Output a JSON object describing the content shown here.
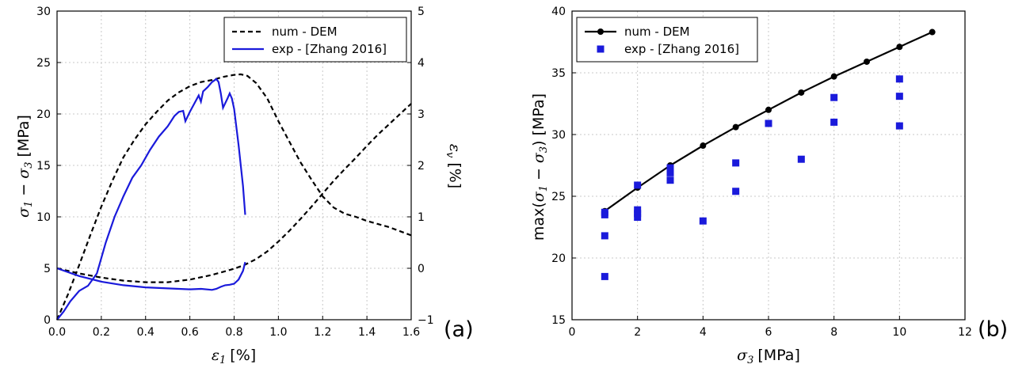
{
  "chart_data": [
    {
      "type": "line",
      "panel_label": "(a)",
      "xlabel_sym": "ε",
      "xlabel_sub": "1",
      "xlabel_unit": "[%]",
      "ylabel": "σ1 − σ3 [MPa]",
      "ylabel_sym1": "σ",
      "ylabel_sub1": "1",
      "ylabel_minus": "−",
      "ylabel_sym2": "σ",
      "ylabel_sub2": "3",
      "ylabel_unit": "[MPa]",
      "y2label_sym": "ε",
      "y2label_sub": "v",
      "y2label_unit": "[%]",
      "xlim": [
        0.0,
        1.6
      ],
      "ylim": [
        0,
        30
      ],
      "y2lim": [
        -1,
        5
      ],
      "xticks": [
        "0.0",
        "0.2",
        "0.4",
        "0.6",
        "0.8",
        "1.0",
        "1.2",
        "1.4",
        "1.6"
      ],
      "yticks": [
        "0",
        "5",
        "10",
        "15",
        "20",
        "25",
        "30"
      ],
      "y2ticks": [
        "−1",
        "0",
        "1",
        "2",
        "3",
        "4",
        "5"
      ],
      "grid": true,
      "legend_position": "top-right",
      "legend": [
        "num - DEM",
        "exp - [Zhang 2016]"
      ],
      "series": [
        {
          "name": "num - DEM",
          "axis": "left",
          "style": "dashed",
          "color": "#000000",
          "x": [
            0,
            0.05,
            0.1,
            0.15,
            0.2,
            0.25,
            0.3,
            0.35,
            0.4,
            0.45,
            0.5,
            0.55,
            0.6,
            0.65,
            0.7,
            0.75,
            0.8,
            0.83,
            0.86,
            0.9,
            0.95,
            1.0,
            1.05,
            1.1,
            1.15,
            1.2,
            1.25,
            1.3,
            1.35,
            1.4,
            1.45,
            1.5,
            1.55,
            1.6
          ],
          "y": [
            0,
            2.5,
            5.3,
            8.2,
            11,
            13.5,
            15.8,
            17.5,
            19,
            20.2,
            21.3,
            22.1,
            22.7,
            23.1,
            23.3,
            23.6,
            23.8,
            23.85,
            23.7,
            23.0,
            21.5,
            19.3,
            17.3,
            15.3,
            13.6,
            12.0,
            10.9,
            10.3,
            10.0,
            9.6,
            9.3,
            9.0,
            8.6,
            8.2
          ]
        },
        {
          "name": "exp - [Zhang 2016]",
          "axis": "left",
          "style": "solid",
          "color": "#1a1adb",
          "x": [
            0,
            0.03,
            0.06,
            0.1,
            0.14,
            0.18,
            0.22,
            0.26,
            0.3,
            0.34,
            0.38,
            0.42,
            0.46,
            0.5,
            0.53,
            0.55,
            0.57,
            0.58,
            0.6,
            0.62,
            0.64,
            0.65,
            0.66,
            0.68,
            0.7,
            0.72,
            0.73,
            0.74,
            0.75,
            0.77,
            0.78,
            0.79,
            0.8,
            0.82,
            0.84,
            0.85
          ],
          "y": [
            0,
            0.8,
            1.8,
            2.8,
            3.3,
            4.5,
            7.5,
            10.0,
            12.0,
            13.8,
            15.0,
            16.5,
            17.8,
            18.8,
            19.8,
            20.2,
            20.3,
            19.3,
            20.2,
            21.0,
            21.8,
            21.2,
            22.2,
            22.6,
            23.1,
            23.4,
            23.1,
            22.0,
            20.6,
            21.5,
            22.0,
            21.5,
            20.5,
            17.0,
            13.0,
            10.2
          ]
        },
        {
          "name": "",
          "axis": "right",
          "style": "dashed",
          "color": "#000000",
          "x": [
            0,
            0.1,
            0.2,
            0.3,
            0.4,
            0.5,
            0.6,
            0.7,
            0.8,
            0.85,
            0.9,
            0.95,
            1.0,
            1.05,
            1.1,
            1.15,
            1.2,
            1.25,
            1.3,
            1.35,
            1.4,
            1.45,
            1.5,
            1.55,
            1.6
          ],
          "y": [
            0,
            -0.1,
            -0.18,
            -0.24,
            -0.27,
            -0.27,
            -0.22,
            -0.13,
            -0.01,
            0.07,
            0.18,
            0.33,
            0.52,
            0.73,
            0.96,
            1.2,
            1.45,
            1.7,
            1.93,
            2.15,
            2.38,
            2.6,
            2.8,
            3.0,
            3.2
          ]
        },
        {
          "name": "",
          "axis": "right",
          "style": "solid",
          "color": "#1a1adb",
          "x": [
            0,
            0.1,
            0.2,
            0.3,
            0.4,
            0.5,
            0.6,
            0.65,
            0.7,
            0.72,
            0.74,
            0.76,
            0.78,
            0.8,
            0.82,
            0.84,
            0.85
          ],
          "y": [
            0,
            -0.15,
            -0.26,
            -0.33,
            -0.37,
            -0.39,
            -0.41,
            -0.4,
            -0.42,
            -0.4,
            -0.36,
            -0.33,
            -0.32,
            -0.3,
            -0.22,
            -0.05,
            0.12
          ]
        }
      ]
    },
    {
      "type": "scatter",
      "panel_label": "(b)",
      "xlabel_sym": "σ",
      "xlabel_sub": "3",
      "xlabel_unit": "[MPa]",
      "ylabel": "max(σ1 − σ3) [MPa]",
      "ylabel_pre": "max(",
      "ylabel_sym1": "σ",
      "ylabel_sub1": "1",
      "ylabel_minus": "−",
      "ylabel_sym2": "σ",
      "ylabel_sub2": "3",
      "ylabel_close": ")",
      "ylabel_unit": "[MPa]",
      "xlim": [
        0,
        12
      ],
      "ylim": [
        15,
        40
      ],
      "xticks": [
        "0",
        "2",
        "4",
        "6",
        "8",
        "10",
        "12"
      ],
      "yticks": [
        "15",
        "20",
        "25",
        "30",
        "35",
        "40"
      ],
      "grid": true,
      "legend_position": "top-left",
      "legend": [
        "num - DEM",
        "exp - [Zhang 2016]"
      ],
      "series": [
        {
          "name": "num - DEM",
          "style": "line-marker",
          "color": "#000000",
          "x": [
            1,
            2,
            3,
            4,
            5,
            6,
            7,
            8,
            9,
            10,
            11
          ],
          "y": [
            23.8,
            25.7,
            27.5,
            29.1,
            30.6,
            32.0,
            33.4,
            34.7,
            35.9,
            37.1,
            38.3
          ]
        },
        {
          "name": "exp - [Zhang 2016]",
          "style": "square-marker",
          "color": "#1a1adb",
          "x": [
            1,
            1,
            1,
            1,
            2,
            2,
            2,
            2,
            3,
            3,
            3,
            4,
            5,
            5,
            6,
            7,
            8,
            8,
            10,
            10,
            10
          ],
          "y": [
            18.5,
            21.8,
            23.5,
            23.7,
            23.3,
            23.6,
            23.9,
            25.9,
            26.3,
            26.9,
            27.3,
            23.0,
            25.4,
            27.7,
            30.9,
            28.0,
            31.0,
            33.0,
            30.7,
            33.1,
            34.5
          ]
        }
      ]
    }
  ]
}
